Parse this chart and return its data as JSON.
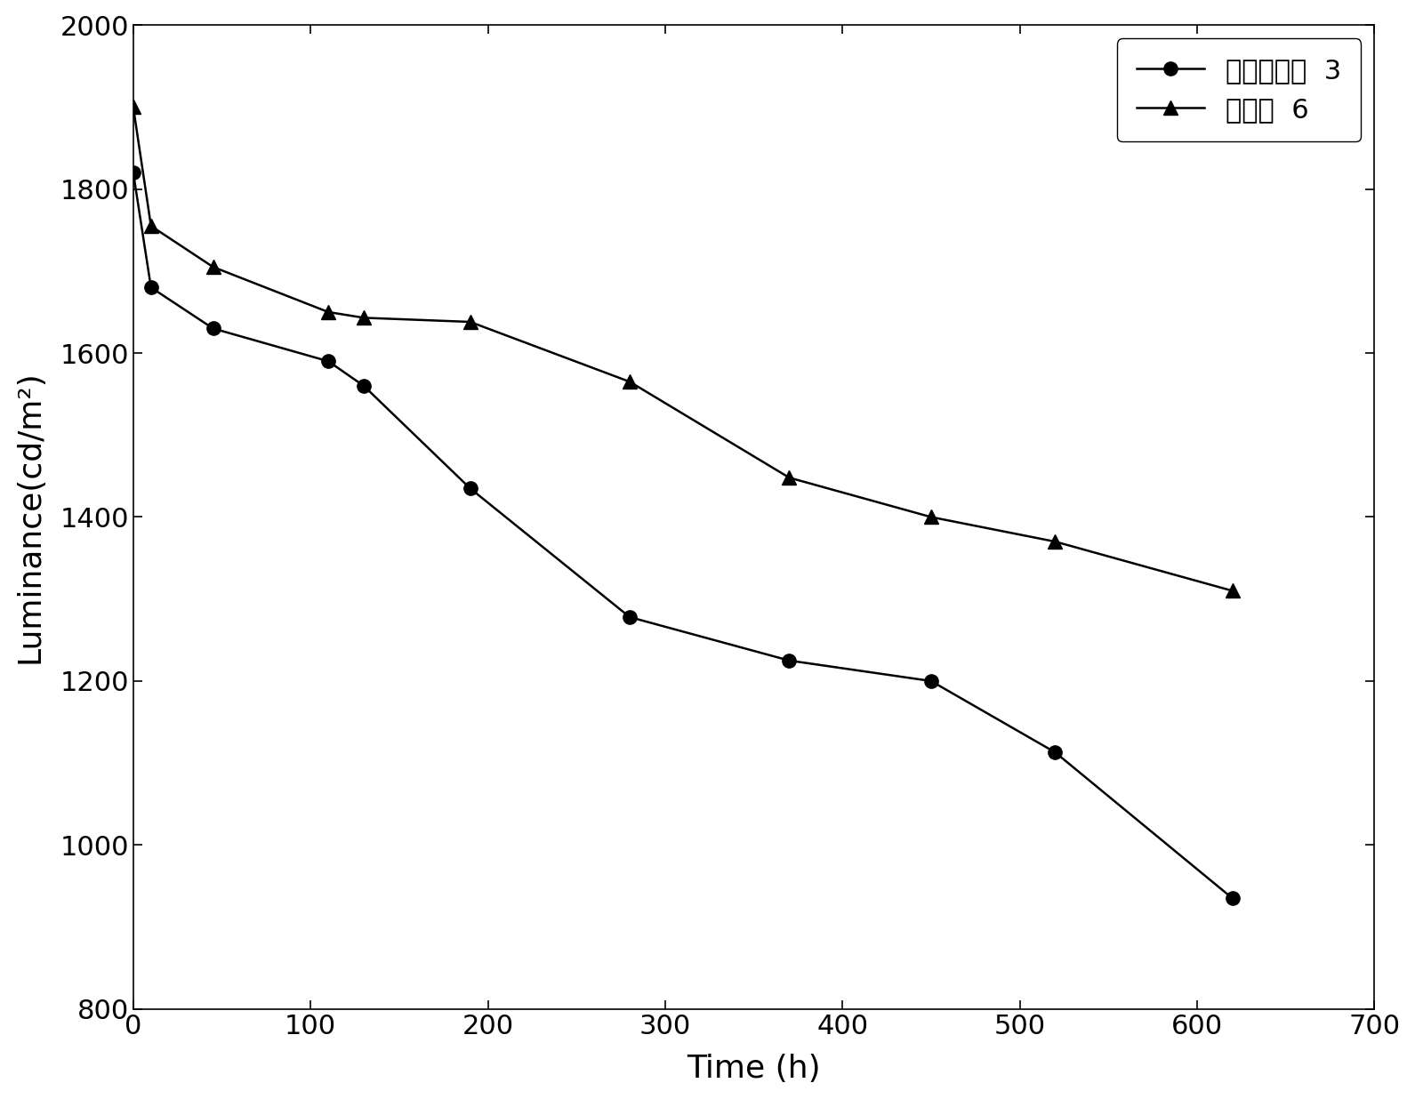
{
  "series1_label": "对比实施例  3",
  "series2_label": "实施例  6",
  "series1_x": [
    0,
    10,
    45,
    110,
    130,
    190,
    280,
    370,
    450,
    520,
    620
  ],
  "series1_y": [
    1820,
    1680,
    1630,
    1590,
    1560,
    1435,
    1278,
    1225,
    1200,
    1113,
    935
  ],
  "series2_x": [
    0,
    10,
    45,
    110,
    130,
    190,
    280,
    370,
    450,
    520,
    620
  ],
  "series2_y": [
    1900,
    1755,
    1705,
    1650,
    1643,
    1638,
    1565,
    1448,
    1400,
    1370,
    1310
  ],
  "xlabel": "Time (h)",
  "ylabel": "Luminance(cd/m²)",
  "xlim": [
    0,
    700
  ],
  "ylim": [
    800,
    2000
  ],
  "xticks": [
    0,
    100,
    200,
    300,
    400,
    500,
    600,
    700
  ],
  "yticks": [
    800,
    1000,
    1200,
    1400,
    1600,
    1800,
    2000
  ],
  "line_color": "#000000",
  "marker1": "o",
  "marker2": "^",
  "markersize": 11,
  "linewidth": 1.8,
  "legend_loc": "upper right",
  "background_color": "#ffffff",
  "tick_fontsize": 22,
  "label_fontsize": 26,
  "legend_fontsize": 22
}
